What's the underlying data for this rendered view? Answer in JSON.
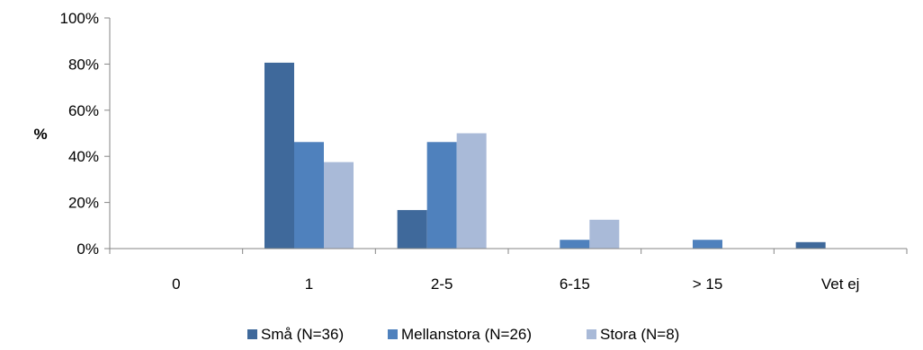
{
  "chart_data": {
    "type": "bar",
    "categories": [
      "0",
      "1",
      "2-5",
      "6-15",
      "> 15",
      "Vet ej"
    ],
    "series": [
      {
        "name": "Små (N=36)",
        "values": [
          0,
          80.6,
          16.7,
          0,
          0,
          2.8
        ],
        "color": "#3F699B"
      },
      {
        "name": "Mellanstora (N=26)",
        "values": [
          0,
          46.2,
          46.2,
          3.8,
          3.8,
          0
        ],
        "color": "#4F81BD"
      },
      {
        "name": "Stora (N=8)",
        "values": [
          0,
          37.5,
          50.0,
          12.5,
          0,
          0
        ],
        "color": "#A9BAD8"
      }
    ],
    "title": "",
    "xlabel": "",
    "ylabel": "%",
    "ylim": [
      0,
      100
    ],
    "yticks": [
      0,
      20,
      40,
      60,
      80,
      100
    ],
    "ytick_labels": [
      "0%",
      "20%",
      "40%",
      "60%",
      "80%",
      "100%"
    ],
    "grid": false,
    "legend": "bottom"
  }
}
